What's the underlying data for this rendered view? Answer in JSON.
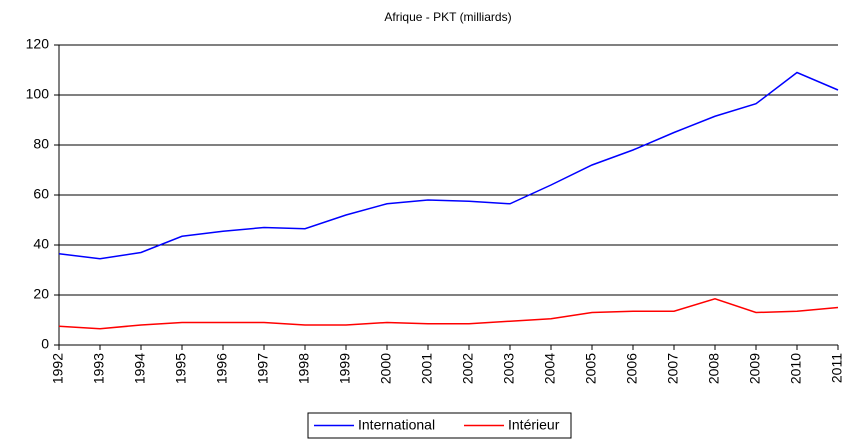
{
  "chart_data": {
    "type": "line",
    "title": "Afrique - PKT (milliards)",
    "categories": [
      "1992",
      "1993",
      "1994",
      "1995",
      "1996",
      "1997",
      "1998",
      "1999",
      "2000",
      "2001",
      "2002",
      "2003",
      "2004",
      "2005",
      "2006",
      "2007",
      "2008",
      "2009",
      "2010",
      "2011"
    ],
    "series": [
      {
        "name": "International",
        "color": "#0000ff",
        "values": [
          36.5,
          34.5,
          37,
          43.5,
          45.5,
          47,
          46.5,
          52,
          56.5,
          58,
          57.5,
          56.5,
          64,
          72,
          78,
          85,
          91.5,
          96.5,
          109,
          102
        ]
      },
      {
        "name": "Intérieur",
        "color": "#ff0000",
        "values": [
          7.5,
          6.5,
          8,
          9,
          9,
          9,
          8,
          8,
          9,
          8.5,
          8.5,
          9.5,
          10.5,
          13,
          13.5,
          13.5,
          18.5,
          13,
          13.5,
          15
        ]
      }
    ],
    "ylim": [
      0,
      120
    ],
    "yticks": [
      0,
      20,
      40,
      60,
      80,
      100,
      120
    ],
    "grid": true,
    "legend": "bottom"
  }
}
